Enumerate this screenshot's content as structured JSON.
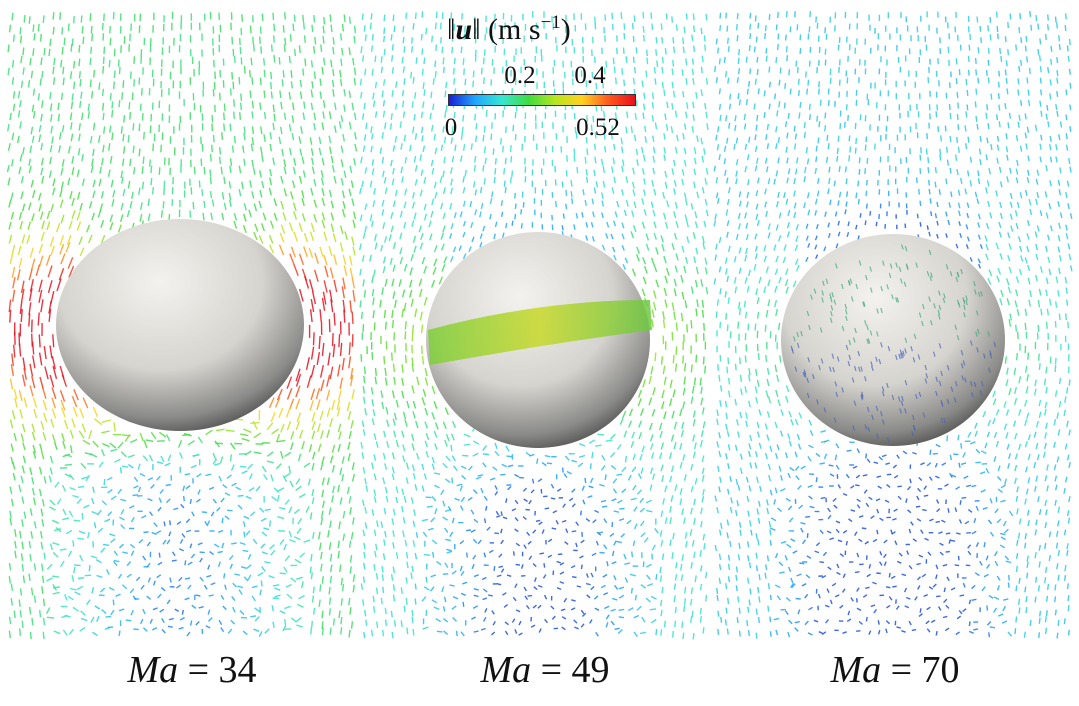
{
  "colorbar": {
    "title_lead": "‖",
    "title_var": "u",
    "title_tail": "‖ (m s",
    "title_sup": "−1",
    "title_close": ")",
    "min": 0,
    "max": 0.52,
    "ticks_top": [
      "0.2",
      "0.4"
    ],
    "ticks_bottom": [
      "0",
      "0.52"
    ],
    "colors": [
      "#1a1fd6",
      "#1fa8ff",
      "#37e6d0",
      "#3fdc3f",
      "#b8e61f",
      "#ffd21f",
      "#ff5a1f",
      "#e8101f"
    ]
  },
  "panels": [
    {
      "id": "ma34",
      "symbol": "Ma",
      "equals": " = ",
      "value": "34",
      "shape": "oblate",
      "speed_level": 0.38,
      "side_speed_level": 0.95
    },
    {
      "id": "ma49",
      "symbol": "Ma",
      "equals": " = ",
      "value": "49",
      "shape": "sphere-band",
      "speed_level": 0.28,
      "side_speed_level": 0.45
    },
    {
      "id": "ma70",
      "symbol": "Ma",
      "equals": " = ",
      "value": "70",
      "shape": "sphere",
      "speed_level": 0.22,
      "side_speed_level": 0.32
    }
  ]
}
